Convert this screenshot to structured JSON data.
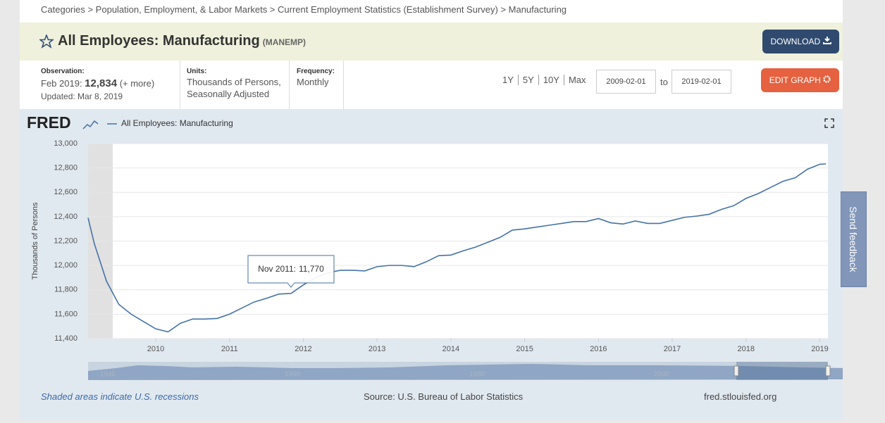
{
  "breadcrumb": "Categories > Population, Employment, & Labor Markets > Current Employment Statistics (Establishment Survey) > Manufacturing",
  "header": {
    "title": "All Employees: Manufacturing",
    "series_id": "(MANEMP)",
    "download": "DOWNLOAD"
  },
  "observation": {
    "label": "Observation:",
    "period": "Feb 2019:",
    "value": "12,834",
    "more": "(+ more)",
    "updated": "Updated: Mar 8, 2019"
  },
  "units": {
    "label": "Units:",
    "lines": [
      "Thousands of Persons,",
      "Seasonally Adjusted"
    ]
  },
  "frequency": {
    "label": "Frequency:",
    "value": "Monthly"
  },
  "range_options": [
    "1Y",
    "5Y",
    "10Y",
    "Max"
  ],
  "date_range": {
    "start": "2009-02-01",
    "separator": "to",
    "end": "2019-02-01"
  },
  "edit_graph": "EDIT GRAPH",
  "logo": "FRED",
  "chart_data": {
    "type": "line",
    "y_label": "Thousands of Persons",
    "x": [
      2009.083,
      2009.167,
      2009.333,
      2009.5,
      2009.667,
      2009.833,
      2010.0,
      2010.167,
      2010.333,
      2010.5,
      2010.667,
      2010.833,
      2011.0,
      2011.167,
      2011.333,
      2011.5,
      2011.667,
      2011.833,
      2012.0,
      2012.167,
      2012.333,
      2012.5,
      2012.667,
      2012.833,
      2013.0,
      2013.167,
      2013.333,
      2013.5,
      2013.667,
      2013.833,
      2014.0,
      2014.167,
      2014.333,
      2014.5,
      2014.667,
      2014.833,
      2015.0,
      2015.167,
      2015.333,
      2015.5,
      2015.667,
      2015.833,
      2016.0,
      2016.167,
      2016.333,
      2016.5,
      2016.667,
      2016.833,
      2017.0,
      2017.167,
      2017.333,
      2017.5,
      2017.667,
      2017.833,
      2018.0,
      2018.167,
      2018.333,
      2018.5,
      2018.667,
      2018.833,
      2019.0,
      2019.083
    ],
    "series": [
      {
        "name": "All Employees: Manufacturing",
        "color": "#4572a7",
        "values": [
          12390,
          12180,
          11870,
          11680,
          11600,
          11540,
          11480,
          11455,
          11525,
          11560,
          11560,
          11565,
          11600,
          11650,
          11700,
          11730,
          11765,
          11770,
          11840,
          11900,
          11940,
          11960,
          11960,
          11955,
          11990,
          12000,
          12000,
          11990,
          12030,
          12080,
          12085,
          12120,
          12150,
          12190,
          12230,
          12290,
          12300,
          12315,
          12330,
          12345,
          12360,
          12360,
          12385,
          12350,
          12340,
          12365,
          12345,
          12345,
          12370,
          12395,
          12405,
          12420,
          12460,
          12490,
          12550,
          12590,
          12640,
          12690,
          12720,
          12790,
          12830,
          12834
        ]
      }
    ],
    "xlim": [
      2009.083,
      2019.11
    ],
    "xticks": [
      2010,
      2011,
      2012,
      2013,
      2014,
      2015,
      2016,
      2017,
      2018,
      2019
    ],
    "ylim": [
      11400,
      13000
    ],
    "yticks": [
      {
        "value": 11400,
        "label": "11,400"
      },
      {
        "value": 11600,
        "label": "11,600"
      },
      {
        "value": 11800,
        "label": "11,800"
      },
      {
        "value": 12000,
        "label": "12,000"
      },
      {
        "value": 12200,
        "label": "12,200"
      },
      {
        "value": 12400,
        "label": "12,400"
      },
      {
        "value": 12600,
        "label": "12,600"
      },
      {
        "value": 12800,
        "label": "12,800"
      },
      {
        "value": 13000,
        "label": "13,000"
      }
    ],
    "grid": true,
    "recessions": [
      {
        "start": 2009.083,
        "end": 2009.417
      }
    ],
    "tooltip": {
      "x": 2011.833,
      "label": "Nov 2011:",
      "value": {
        "value": 11770,
        "label": "11,770"
      }
    }
  },
  "navigator": {
    "labels": [
      "1940",
      "1960",
      "1980",
      "2000"
    ]
  },
  "footer": {
    "recession_note": "Shaded areas indicate U.S. recessions",
    "source": "Source: U.S. Bureau of Labor Statistics",
    "site": "fred.stlouisfed.org"
  },
  "feedback": "Send feedback"
}
